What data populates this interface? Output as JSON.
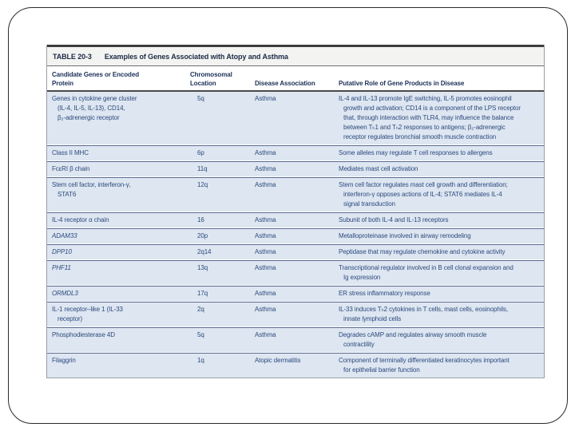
{
  "table": {
    "title_label": "TABLE 20-3",
    "title": "Examples of Genes Associated with Atopy and Asthma",
    "columns": {
      "gene": "Candidate Genes or Encoded\nProtein",
      "location": "Chromosomal Location",
      "disease": "Disease Association",
      "role": "Putative Role of Gene Products in Disease"
    },
    "rows": [
      {
        "gene": "Genes in cytokine gene cluster\n(IL-4, IL-5, IL-13), CD14,\nβ₂-adrenergic receptor",
        "location": "5q",
        "disease": "Asthma",
        "role": "IL-4 and IL-13 promote IgE switching, IL-5 promotes eosinophil\ngrowth and activation; CD14 is a component of the LPS receptor\nthat, through interaction with TLR4, may influence the balance\nbetween Tₕ1 and Tₕ2 responses to antigens; β₂-adrenergic\nreceptor regulates bronchial smooth muscle contraction"
      },
      {
        "gene": "Class II MHC",
        "location": "6p",
        "disease": "Asthma",
        "role": "Some alleles may regulate T cell responses to allergens"
      },
      {
        "gene": "FcεRI β chain",
        "location": "11q",
        "disease": "Asthma",
        "role": "Mediates mast cell activation"
      },
      {
        "gene": "Stem cell factor, interferon-γ,\nSTAT6",
        "location": "12q",
        "disease": "Asthma",
        "role": "Stem cell factor regulates mast cell growth and differentiation;\ninterferon-γ opposes actions of IL-4; STAT6 mediates IL-4\nsignal transduction"
      },
      {
        "gene": "IL-4 receptor α chain",
        "location": "16",
        "disease": "Asthma",
        "role": "Subunit of both IL-4 and IL-13 receptors"
      },
      {
        "gene": "ADAM33",
        "location": "20p",
        "disease": "Asthma",
        "role": "Metalloproteinase involved in airway remodeling"
      },
      {
        "gene": "DPP10",
        "location": "2q14",
        "disease": "Asthma",
        "role": "Peptidase that may regulate chemokine and cytokine activity"
      },
      {
        "gene": "PHF11",
        "location": "13q",
        "disease": "Asthma",
        "role": "Transcriptional regulator involved in B cell clonal expansion and\nIg expression"
      },
      {
        "gene": "ORMDL3",
        "location": "17q",
        "disease": "Asthma",
        "role": "ER stress inflammatory response"
      },
      {
        "gene": "IL-1 receptor–like 1 (IL-33\nreceptor)",
        "location": "2q",
        "disease": "Asthma",
        "role": "IL-33 induces Tₕ2 cytokines in T cells, mast cells, eosinophils,\ninnate lymphoid cells"
      },
      {
        "gene": "Phosphodiesterase 4D",
        "location": "5q",
        "disease": "Asthma",
        "role": "Degrades cAMP and regulates airway smooth muscle\ncontractility"
      },
      {
        "gene": "Filaggrin",
        "location": "1q",
        "disease": "Atopic dermatitis",
        "role": "Component of terminally differentiated keratinocytes important\nfor epithelial barrier function"
      }
    ]
  },
  "colors": {
    "row_background": "#dde6f1",
    "body_text": "#2e4a7d",
    "header_text": "#1b3057",
    "title_background": "#f3f4f2",
    "thick_rule": "#4a4a4a",
    "row_separator": "#5a6a92"
  }
}
